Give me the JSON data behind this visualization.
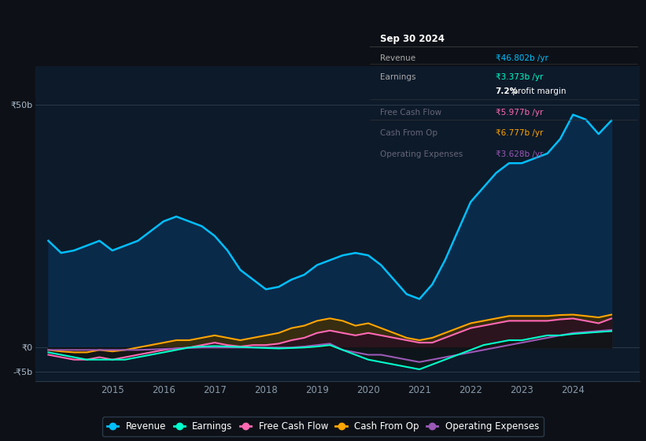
{
  "background_color": "#0d1117",
  "plot_bg_color": "#0d1a2a",
  "years": [
    2013.75,
    2014,
    2014.25,
    2014.5,
    2014.75,
    2015,
    2015.25,
    2015.5,
    2015.75,
    2016,
    2016.25,
    2016.5,
    2016.75,
    2017,
    2017.25,
    2017.5,
    2017.75,
    2018,
    2018.25,
    2018.5,
    2018.75,
    2019,
    2019.25,
    2019.5,
    2019.75,
    2020,
    2020.25,
    2020.5,
    2020.75,
    2021,
    2021.25,
    2021.5,
    2021.75,
    2022,
    2022.25,
    2022.5,
    2022.75,
    2023,
    2023.25,
    2023.5,
    2023.75,
    2024,
    2024.25,
    2024.5,
    2024.75
  ],
  "revenue": [
    22,
    19.5,
    20,
    21,
    22,
    20,
    21,
    22,
    24,
    26,
    27,
    26,
    25,
    23,
    20,
    16,
    14,
    12,
    12.5,
    14,
    15,
    17,
    18,
    19,
    19.5,
    19,
    17,
    14,
    11,
    10,
    13,
    18,
    24,
    30,
    33,
    36,
    38,
    38,
    39,
    40,
    43,
    48,
    47,
    44,
    46.8
  ],
  "earnings": [
    -1,
    -1.5,
    -2,
    -2.5,
    -2.5,
    -2.5,
    -2.5,
    -2,
    -1.5,
    -1,
    -0.5,
    0,
    0.2,
    0.3,
    0.2,
    0.1,
    0,
    -0.1,
    -0.2,
    -0.1,
    0,
    0.2,
    0.5,
    -0.5,
    -1.5,
    -2.5,
    -3,
    -3.5,
    -4,
    -4.5,
    -3.5,
    -2.5,
    -1.5,
    -0.5,
    0.5,
    1,
    1.5,
    1.5,
    2,
    2.5,
    2.5,
    2.8,
    3,
    3.2,
    3.373
  ],
  "free_cash_flow": [
    -1.5,
    -2,
    -2.5,
    -2.5,
    -2,
    -2.5,
    -2,
    -1.5,
    -1,
    -0.5,
    -0.2,
    0,
    0.5,
    1,
    0.5,
    0.2,
    0.5,
    0.5,
    0.8,
    1.5,
    2,
    3,
    3.5,
    3,
    2.5,
    3,
    2.5,
    2,
    1.5,
    1,
    1,
    2,
    3,
    4,
    4.5,
    5,
    5.5,
    5.5,
    5.5,
    5.5,
    5.8,
    5.977,
    5.5,
    5,
    5.977
  ],
  "cash_from_op": [
    -0.5,
    -0.8,
    -1,
    -1,
    -0.5,
    -0.8,
    -0.5,
    0,
    0.5,
    1,
    1.5,
    1.5,
    2,
    2.5,
    2,
    1.5,
    2,
    2.5,
    3,
    4,
    4.5,
    5.5,
    6,
    5.5,
    4.5,
    5,
    4,
    3,
    2,
    1.5,
    2,
    3,
    4,
    5,
    5.5,
    6,
    6.5,
    6.5,
    6.5,
    6.5,
    6.7,
    6.777,
    6.5,
    6.2,
    6.777
  ],
  "operating_expenses": [
    -0.5,
    -0.5,
    -0.5,
    -0.5,
    -0.5,
    -0.5,
    -0.5,
    -0.5,
    -0.4,
    -0.3,
    -0.2,
    -0.1,
    0,
    0,
    0,
    0,
    0,
    0,
    0,
    0,
    0.2,
    0.5,
    0.8,
    -0.5,
    -1,
    -1.5,
    -1.5,
    -2,
    -2.5,
    -3,
    -2.5,
    -2,
    -1.5,
    -1,
    -0.5,
    0,
    0.5,
    1,
    1.5,
    2,
    2.5,
    3,
    3.2,
    3.4,
    3.628
  ],
  "revenue_color": "#00bfff",
  "earnings_color": "#00ffcc",
  "free_cash_flow_color": "#ff69b4",
  "cash_from_op_color": "#ffa500",
  "operating_expenses_color": "#9b59b6",
  "ylim": [
    -7,
    58
  ],
  "xlim": [
    2013.5,
    2025.3
  ],
  "xtick_labels": [
    "2015",
    "2016",
    "2017",
    "2018",
    "2019",
    "2020",
    "2021",
    "2022",
    "2023",
    "2024"
  ],
  "xtick_values": [
    2015,
    2016,
    2017,
    2018,
    2019,
    2020,
    2021,
    2022,
    2023,
    2024
  ],
  "info_box_title": "Sep 30 2024",
  "info_rows": [
    {
      "label": "Revenue",
      "value": "₹46.802b /yr",
      "value_color": "#00bfff",
      "dim": false
    },
    {
      "label": "Earnings",
      "value": "₹3.373b /yr",
      "value_color": "#00ffcc",
      "dim": false
    },
    {
      "label": "",
      "value": "7.2% profit margin",
      "value_color": "#ffffff",
      "dim": false,
      "bold_prefix": "7.2%"
    },
    {
      "label": "Free Cash Flow",
      "value": "₹5.977b /yr",
      "value_color": "#ff69b4",
      "dim": true
    },
    {
      "label": "Cash From Op",
      "value": "₹6.777b /yr",
      "value_color": "#ffa500",
      "dim": true
    },
    {
      "label": "Operating Expenses",
      "value": "₹3.628b /yr",
      "value_color": "#9b59b6",
      "dim": true
    }
  ],
  "legend_items": [
    {
      "label": "Revenue",
      "color": "#00bfff"
    },
    {
      "label": "Earnings",
      "color": "#00ffcc"
    },
    {
      "label": "Free Cash Flow",
      "color": "#ff69b4"
    },
    {
      "label": "Cash From Op",
      "color": "#ffa500"
    },
    {
      "label": "Operating Expenses",
      "color": "#9b59b6"
    }
  ]
}
